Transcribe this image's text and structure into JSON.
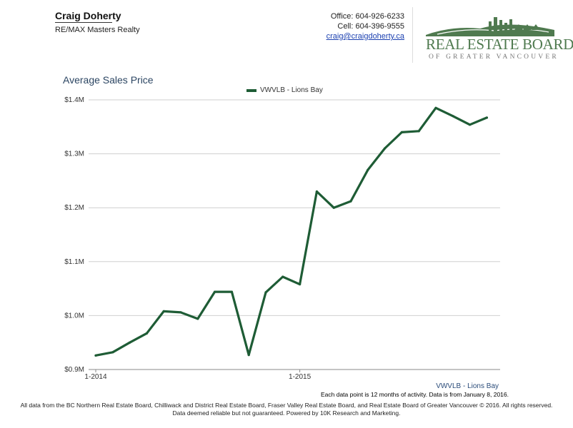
{
  "agent": {
    "name": "Craig Doherty",
    "company": "RE/MAX Masters Realty"
  },
  "contact": {
    "office": "Office: 604-926-6233",
    "cell": "Cell: 604-396-9555",
    "email": "craig@craigdoherty.ca"
  },
  "logo": {
    "main": "REAL ESTATE BOARD",
    "sub": "OF GREATER VANCOUVER",
    "color": "#4f7a4f"
  },
  "chart_data": {
    "type": "line",
    "title": "Average Sales Price",
    "xlabel": "",
    "ylabel": "",
    "x_tick_labels": [
      "1-2014",
      "1-2015"
    ],
    "y_tick_labels": [
      "$0.9M",
      "$1.0M",
      "$1.1M",
      "$1.2M",
      "$1.3M",
      "$1.4M"
    ],
    "ylim": [
      0.9,
      1.4
    ],
    "grid": true,
    "legend_position": "top-center",
    "color": "#1e5c35",
    "series": [
      {
        "name": "VWVLB - Lions Bay",
        "x": [
          "2014-01",
          "2014-02",
          "2014-03",
          "2014-04",
          "2014-05",
          "2014-06",
          "2014-07",
          "2014-08",
          "2014-09",
          "2014-10",
          "2014-11",
          "2014-12",
          "2015-01",
          "2015-02",
          "2015-03",
          "2015-04",
          "2015-05",
          "2015-06",
          "2015-07",
          "2015-08",
          "2015-09",
          "2015-10",
          "2015-11",
          "2015-12"
        ],
        "values": [
          0.926,
          0.932,
          0.95,
          0.967,
          1.008,
          1.006,
          0.994,
          1.044,
          1.044,
          0.927,
          1.043,
          1.072,
          1.058,
          1.23,
          1.2,
          1.212,
          1.27,
          1.31,
          1.34,
          1.342,
          1.385,
          1.37,
          1.354,
          1.367
        ]
      }
    ]
  },
  "footer": {
    "note": "Each data point is 12 months of activity. Data is from January 8, 2016.",
    "line1": "All data from the BC Northern Real Estate Board, Chilliwack and District Real Estate Board, Fraser Valley Real Estate Board, and Real Estate Board of Greater Vancouver © 2016. All rights reserved.",
    "line2": "Data deemed reliable but not guaranteed. Powered by 10K Research and Marketing.",
    "series_label": "VWVLB - Lions Bay"
  }
}
